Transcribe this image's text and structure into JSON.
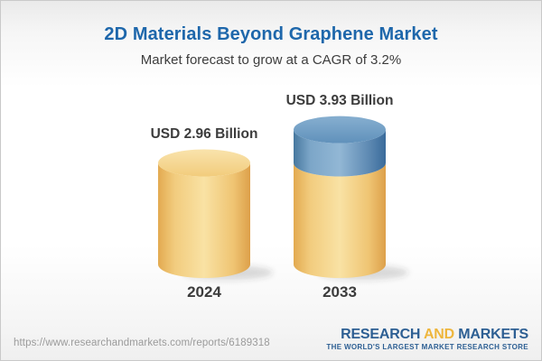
{
  "header": {
    "title": "2D Materials Beyond Graphene Market",
    "subtitle": "Market forecast to grow at a CAGR of 3.2%"
  },
  "chart_data": {
    "type": "bar",
    "style": "3d-cylinder",
    "title": "2D Materials Beyond Graphene Market",
    "subtitle": "Market forecast to grow at a CAGR of 3.2%",
    "cagr_percent": 3.2,
    "unit": "USD Billion",
    "categories": [
      "2024",
      "2033"
    ],
    "values": [
      2.96,
      3.93
    ],
    "bars": [
      {
        "category": "2024",
        "value": 2.96,
        "label": "USD 2.96 Billion",
        "segments": [
          {
            "color": "gold",
            "from": 0,
            "to": 2.96
          }
        ]
      },
      {
        "category": "2033",
        "value": 3.93,
        "label": "USD 3.93 Billion",
        "segments": [
          {
            "color": "gold",
            "from": 0,
            "to": 2.96
          },
          {
            "color": "blue",
            "from": 2.96,
            "to": 3.93
          }
        ]
      }
    ],
    "colors": {
      "gold": "#f0c76f",
      "blue": "#5d89b2",
      "label_text": "#3c3c3c"
    },
    "legend": "none",
    "grid": false,
    "axes_visible": false
  },
  "footer": {
    "url": "https://www.researchandmarkets.com/reports/6189318",
    "logo": {
      "line1": [
        "RESEARCH",
        "AND",
        "MARKETS"
      ],
      "tagline": "THE WORLD'S LARGEST MARKET RESEARCH STORE",
      "colors": {
        "blue": "#2d5f93",
        "gold": "#eeb63d"
      }
    }
  }
}
